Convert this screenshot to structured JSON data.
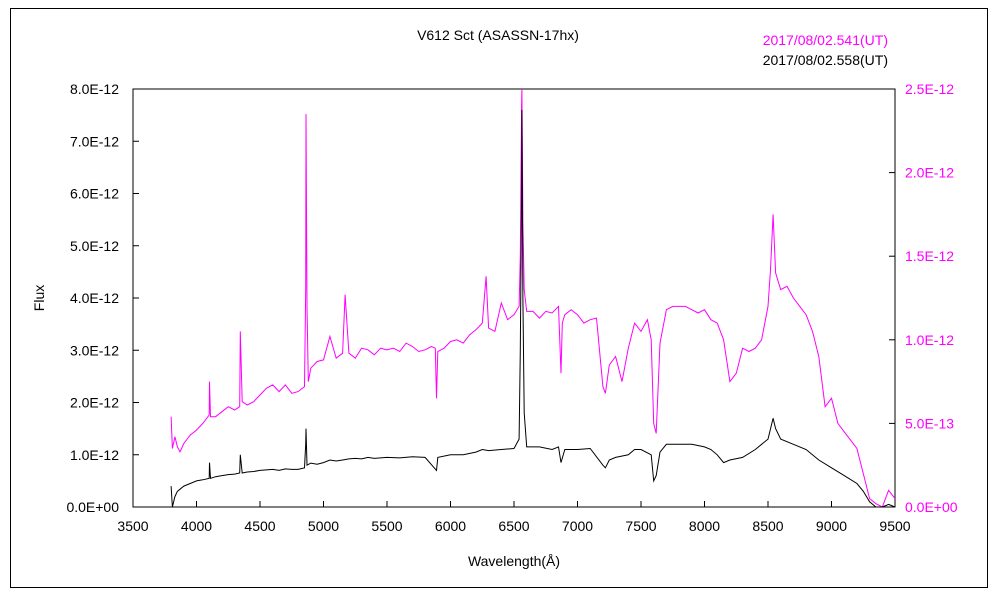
{
  "chart_data": {
    "type": "line",
    "title": "V612 Sct (ASASSN-17hx)",
    "xlabel": "Wavelength(Å)",
    "ylabel": "Flux",
    "xlim": [
      3500,
      9500
    ],
    "ylim_left": [
      0,
      8e-12
    ],
    "ylim_right": [
      0,
      2.5e-12
    ],
    "x_ticks": [
      "3500",
      "4000",
      "4500",
      "5000",
      "5500",
      "6000",
      "6500",
      "7000",
      "7500",
      "8000",
      "8500",
      "9000",
      "9500"
    ],
    "y_left_ticks": [
      "0.0E+00",
      "1.0E-12",
      "2.0E-12",
      "3.0E-12",
      "4.0E-12",
      "5.0E-12",
      "6.0E-12",
      "7.0E-12",
      "8.0E-12"
    ],
    "y_right_ticks": [
      "0.0E+00",
      "5.0E-13",
      "1.0E-12",
      "1.5E-12",
      "2.0E-12",
      "2.5E-12"
    ],
    "grid": false,
    "legend_placement": "top-right",
    "colors": {
      "magenta": "#ff00ff",
      "black": "#000000"
    },
    "series": [
      {
        "name": "2017/08/02.541(UT)",
        "axis": "right",
        "color": "#ff00ff",
        "x": [
          3800,
          3810,
          3830,
          3850,
          3870,
          3900,
          3950,
          4000,
          4050,
          4100,
          4102,
          4110,
          4150,
          4200,
          4250,
          4300,
          4340,
          4345,
          4360,
          4400,
          4450,
          4500,
          4550,
          4600,
          4650,
          4700,
          4750,
          4800,
          4850,
          4860,
          4862,
          4870,
          4880,
          4900,
          4950,
          5000,
          5050,
          5100,
          5150,
          5170,
          5200,
          5250,
          5300,
          5350,
          5400,
          5450,
          5500,
          5550,
          5600,
          5650,
          5700,
          5750,
          5800,
          5850,
          5880,
          5890,
          5900,
          5950,
          6000,
          6050,
          6100,
          6150,
          6200,
          6250,
          6280,
          6300,
          6350,
          6400,
          6450,
          6500,
          6540,
          6550,
          6560,
          6562,
          6570,
          6580,
          6600,
          6650,
          6700,
          6750,
          6800,
          6850,
          6870,
          6880,
          6900,
          6950,
          7000,
          7050,
          7100,
          7150,
          7200,
          7220,
          7250,
          7300,
          7350,
          7400,
          7450,
          7500,
          7550,
          7580,
          7600,
          7620,
          7650,
          7700,
          7750,
          7800,
          7850,
          7900,
          7950,
          8000,
          8050,
          8100,
          8150,
          8200,
          8250,
          8300,
          8350,
          8400,
          8450,
          8500,
          8520,
          8540,
          8560,
          8600,
          8650,
          8700,
          8750,
          8800,
          8850,
          8900,
          8950,
          9000,
          9050,
          9100,
          9150,
          9200,
          9250,
          9300,
          9350,
          9400,
          9450,
          9500
        ],
        "values": [
          5.4e-13,
          3.5e-13,
          4.2e-13,
          3.6e-13,
          3.3e-13,
          3.8e-13,
          4.3e-13,
          4.6e-13,
          5e-13,
          5.5e-13,
          7.5e-13,
          5.4e-13,
          5.4e-13,
          5.7e-13,
          6e-13,
          5.8e-13,
          6e-13,
          1.05e-12,
          6.3e-13,
          6.1e-13,
          6.3e-13,
          6.7e-13,
          7.1e-13,
          7.3e-13,
          6.9e-13,
          7.3e-13,
          6.8e-13,
          6.9e-13,
          7.2e-13,
          1.3e-12,
          2.35e-12,
          1.2e-12,
          7.5e-13,
          8.3e-13,
          8.7e-13,
          8.8e-13,
          1.02e-12,
          8.9e-13,
          9.2e-13,
          1.27e-12,
          9.2e-13,
          8.9e-13,
          9.5e-13,
          9.4e-13,
          9.1e-13,
          9.5e-13,
          9.4e-13,
          9.5e-13,
          9.3e-13,
          9.8e-13,
          9.6e-13,
          9.3e-13,
          9.4e-13,
          9.6e-13,
          9.5e-13,
          6.5e-13,
          9.3e-13,
          9.5e-13,
          9.9e-13,
          1e-12,
          9.8e-13,
          1.03e-12,
          1.06e-12,
          1.1e-12,
          1.38e-12,
          1.07e-12,
          1.05e-12,
          1.22e-12,
          1.12e-12,
          1.15e-12,
          1.2e-12,
          1.5e-12,
          2.4e-12,
          2.6e-12,
          1.7e-12,
          1.3e-12,
          1.17e-12,
          1.17e-12,
          1.13e-12,
          1.17e-12,
          1.16e-12,
          1.2e-12,
          8e-13,
          1.1e-12,
          1.15e-12,
          1.18e-12,
          1.15e-12,
          1.1e-12,
          1.12e-12,
          1.13e-12,
          7.2e-13,
          6.8e-13,
          8.5e-13,
          9e-13,
          7.5e-13,
          9.5e-13,
          1.1e-12,
          1.05e-12,
          1.12e-12,
          1e-12,
          5e-13,
          4.4e-13,
          9.8e-13,
          1.18e-12,
          1.2e-12,
          1.2e-12,
          1.2e-12,
          1.18e-12,
          1.16e-12,
          1.18e-12,
          1.12e-12,
          1.1e-12,
          1e-12,
          7.5e-13,
          8e-13,
          9.5e-13,
          9.3e-13,
          9.5e-13,
          1e-12,
          1.2e-12,
          1.42e-12,
          1.75e-12,
          1.4e-12,
          1.3e-12,
          1.32e-12,
          1.25e-12,
          1.2e-12,
          1.15e-12,
          1.05e-12,
          9e-13,
          6e-13,
          6.5e-13,
          5e-13,
          4.5e-13,
          4e-13,
          3.5e-13,
          2e-13,
          5e-14,
          2e-14,
          0,
          1e-13,
          5e-14
        ]
      },
      {
        "name": "2017/08/02.558(UT)",
        "axis": "left",
        "color": "#000000",
        "x": [
          3800,
          3810,
          3830,
          3850,
          3900,
          3950,
          4000,
          4050,
          4100,
          4102,
          4110,
          4150,
          4200,
          4250,
          4300,
          4340,
          4345,
          4360,
          4400,
          4450,
          4500,
          4550,
          4600,
          4650,
          4700,
          4750,
          4800,
          4850,
          4860,
          4862,
          4870,
          4900,
          4950,
          5000,
          5050,
          5100,
          5150,
          5200,
          5250,
          5300,
          5350,
          5400,
          5500,
          5600,
          5700,
          5800,
          5890,
          5900,
          6000,
          6100,
          6200,
          6250,
          6300,
          6400,
          6500,
          6540,
          6550,
          6560,
          6562,
          6570,
          6580,
          6600,
          6700,
          6800,
          6850,
          6870,
          6900,
          7000,
          7100,
          7200,
          7220,
          7250,
          7300,
          7400,
          7450,
          7500,
          7580,
          7600,
          7620,
          7650,
          7700,
          7800,
          7900,
          8000,
          8050,
          8100,
          8150,
          8200,
          8300,
          8400,
          8500,
          8540,
          8560,
          8600,
          8700,
          8800,
          8900,
          9000,
          9100,
          9200,
          9250,
          9300,
          9350,
          9400,
          9450,
          9500
        ],
        "values": [
          4e-13,
          0,
          2e-13,
          3e-13,
          4e-13,
          4.5e-13,
          5e-13,
          5.2e-13,
          5.5e-13,
          8.5e-13,
          5.5e-13,
          5.8e-13,
          6e-13,
          6.2e-13,
          6.3e-13,
          6.5e-13,
          1e-12,
          6.5e-13,
          6.7e-13,
          6.8e-13,
          7e-13,
          7.1e-13,
          7.2e-13,
          7e-13,
          7.3e-13,
          7.2e-13,
          7.2e-13,
          7.5e-13,
          1.2e-12,
          1.5e-12,
          8e-13,
          8.4e-13,
          8.2e-13,
          8.5e-13,
          9e-13,
          8.8e-13,
          9e-13,
          9.2e-13,
          9.3e-13,
          9.2e-13,
          9.5e-13,
          9.3e-13,
          9.5e-13,
          9.4e-13,
          9.6e-13,
          9.5e-13,
          7e-13,
          9.5e-13,
          1e-12,
          1e-12,
          1.05e-12,
          1.1e-12,
          1.08e-12,
          1.1e-12,
          1.12e-12,
          1.3e-12,
          3e-12,
          6e-12,
          7.6e-12,
          4e-12,
          1.8e-12,
          1.15e-12,
          1.15e-12,
          1.1e-12,
          1.15e-12,
          8.5e-13,
          1.1e-12,
          1.1e-12,
          1.12e-12,
          8e-13,
          7.5e-13,
          9e-13,
          9.5e-13,
          1e-12,
          1.1e-12,
          1.1e-12,
          1e-12,
          5e-13,
          6e-13,
          1.05e-12,
          1.2e-12,
          1.2e-12,
          1.2e-12,
          1.15e-12,
          1.1e-12,
          1e-12,
          8.5e-13,
          9e-13,
          9.5e-13,
          1.1e-12,
          1.3e-12,
          1.7e-12,
          1.5e-12,
          1.3e-12,
          1.2e-12,
          1.1e-12,
          9e-13,
          7.5e-13,
          6e-13,
          4.5e-13,
          3e-13,
          1e-13,
          0,
          0,
          5e-14,
          0
        ]
      }
    ]
  }
}
